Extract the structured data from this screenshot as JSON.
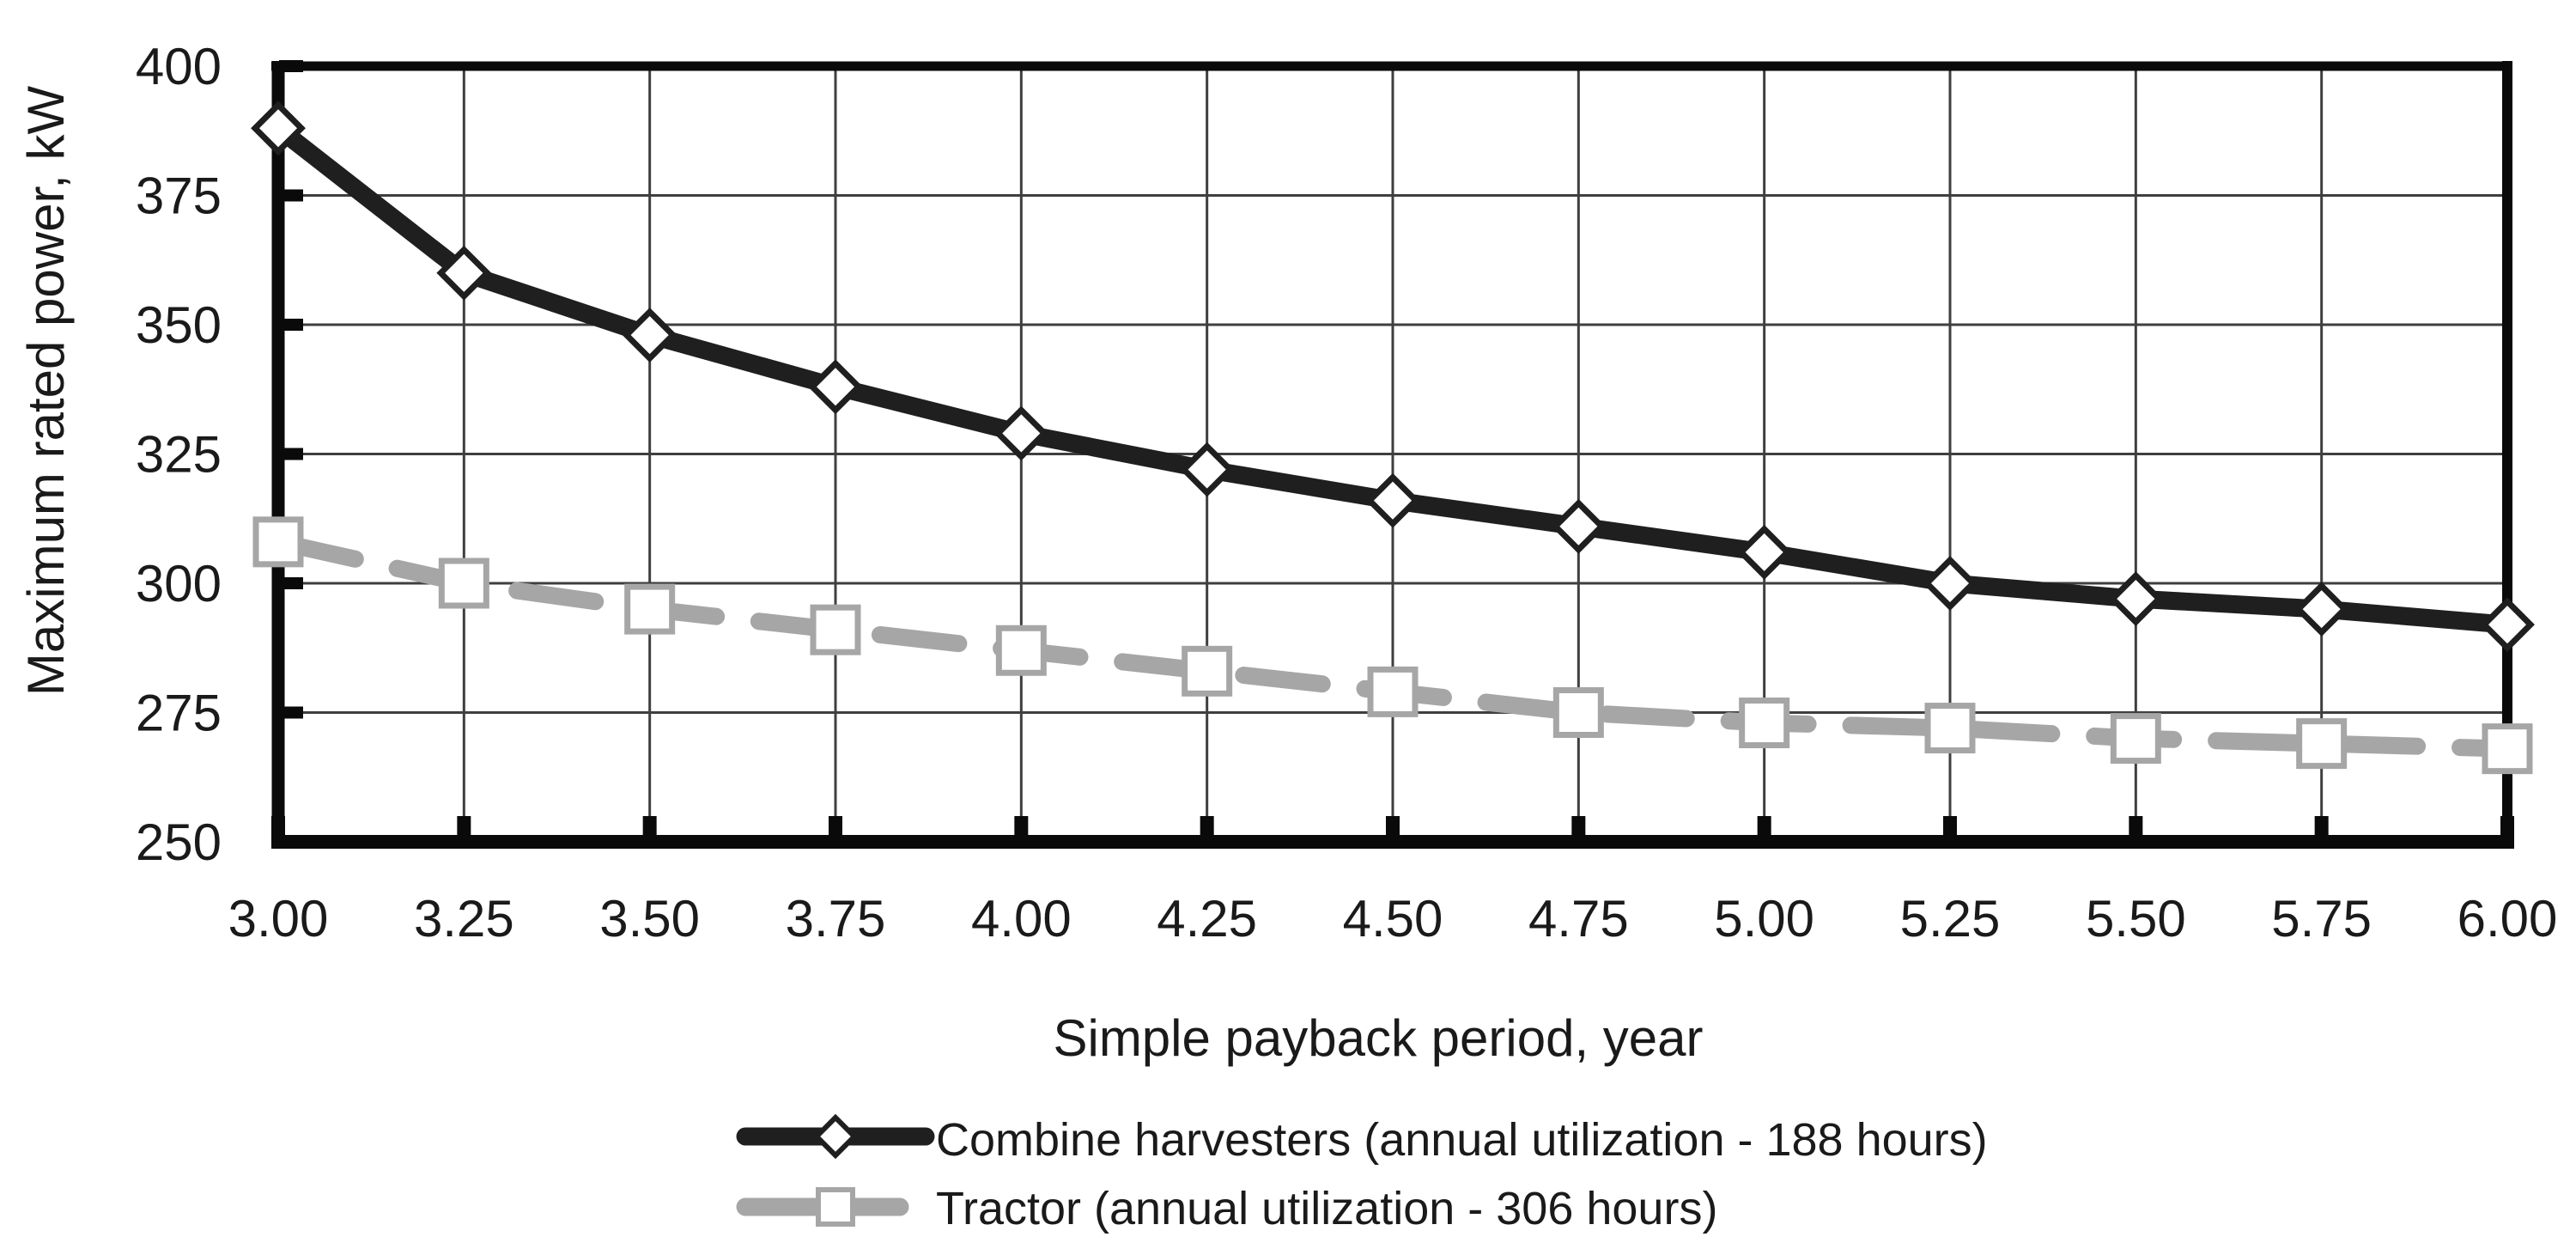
{
  "chart_data": {
    "type": "line",
    "title": "",
    "xlabel": "Simple payback period, year",
    "ylabel": "Maximum rated power, kW",
    "xlim": [
      3.0,
      6.0
    ],
    "ylim": [
      250,
      400
    ],
    "grid": true,
    "legend_position": "bottom-left",
    "x": [
      3.0,
      3.25,
      3.5,
      3.75,
      4.0,
      4.25,
      4.5,
      4.75,
      5.0,
      5.25,
      5.5,
      5.75,
      6.0
    ],
    "x_tick_labels": [
      "3.00",
      "3.25",
      "3.50",
      "3.75",
      "4.00",
      "4.25",
      "4.50",
      "4.75",
      "5.00",
      "5.25",
      "5.50",
      "5.75",
      "6.00"
    ],
    "yticks": [
      250,
      275,
      300,
      325,
      350,
      375,
      400
    ],
    "ytick_labels": [
      "250",
      "275",
      "300",
      "325",
      "350",
      "375",
      "400"
    ],
    "series": [
      {
        "id": "combine-harvesters",
        "name": "Combine harvesters (annual utilization - 188 hours)",
        "color": "#1f1f1f",
        "marker": "diamond",
        "line_style": "solid",
        "line_width": 21,
        "values": [
          388,
          360,
          348,
          338,
          329,
          322,
          316,
          311,
          306,
          300,
          297,
          295,
          292
        ]
      },
      {
        "id": "tractor",
        "name": "Tractor (annual utilization - 306 hours)",
        "color": "#a6a6a6",
        "marker": "square",
        "line_style": "dashed",
        "line_width": 20,
        "values": [
          308,
          300,
          295,
          291,
          287,
          283,
          279,
          275,
          273,
          272,
          270,
          269,
          268
        ]
      }
    ],
    "colors": {
      "grid": "#3f3f3f",
      "frame": "#0a0a0a",
      "text": "#1a1a1a",
      "marker_fill": "#ffffff",
      "background": "#ffffff"
    }
  }
}
